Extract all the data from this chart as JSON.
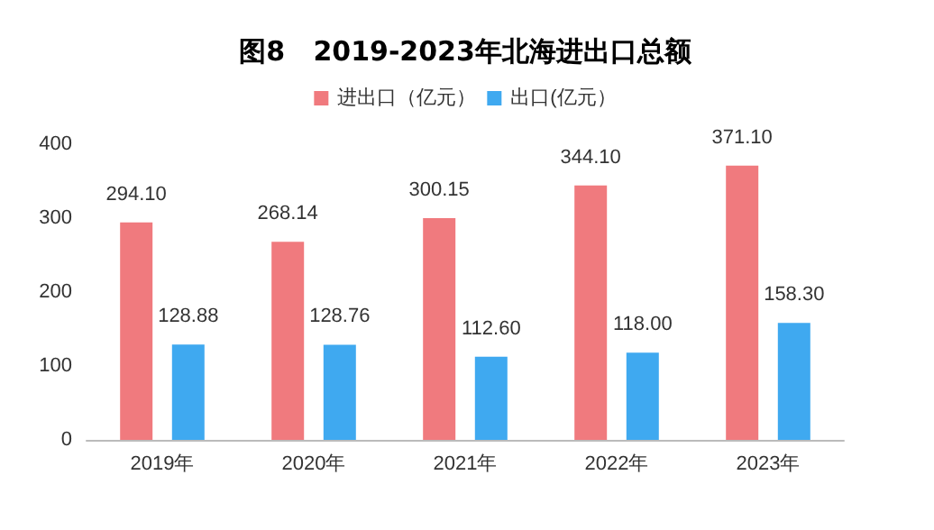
{
  "chart_data": {
    "type": "bar",
    "title": "图8   2019-2023年北海进出口总额",
    "categories": [
      "2019年",
      "2020年",
      "2021年",
      "2022年",
      "2023年"
    ],
    "series": [
      {
        "name": "进出口（亿元）",
        "color": "#f07a7e",
        "values": [
          294.1,
          268.14,
          300.15,
          344.1,
          371.1
        ]
      },
      {
        "name": "出口(亿元）",
        "color": "#3fa9f0",
        "values": [
          128.88,
          128.76,
          112.6,
          118.0,
          158.3
        ]
      }
    ],
    "value_labels": [
      [
        "294.10",
        "268.14",
        "300.15",
        "344.10",
        "371.10"
      ],
      [
        "128.88",
        "128.76",
        "112.60",
        "118.00",
        "158.30"
      ]
    ],
    "ylim": [
      0,
      400
    ],
    "yticks": [
      0,
      100,
      200,
      300,
      400
    ],
    "grid": false,
    "legend": "top"
  }
}
